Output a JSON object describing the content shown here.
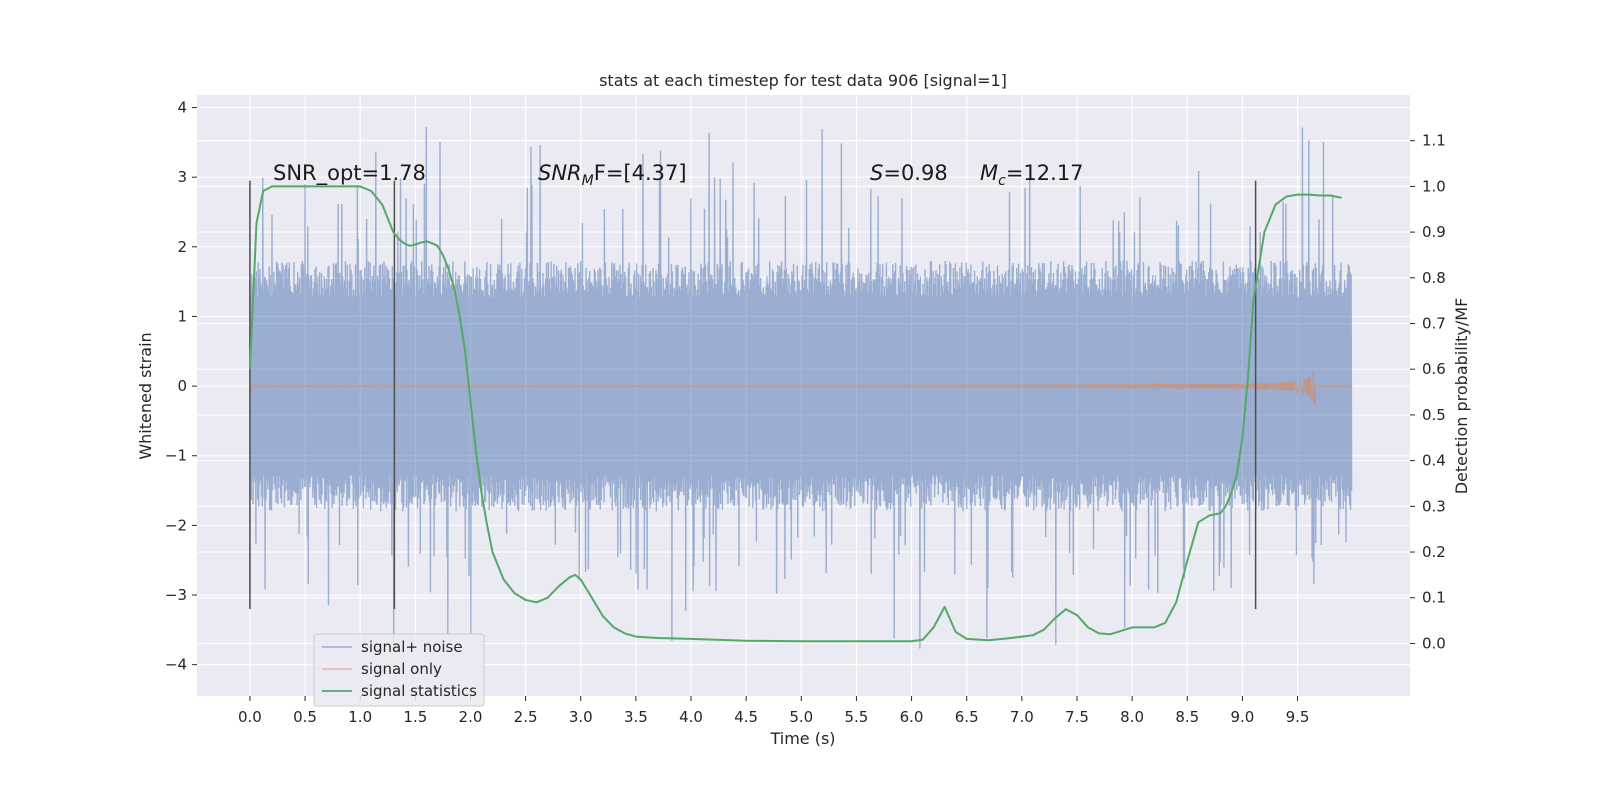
{
  "chart_data": {
    "type": "line",
    "title": "stats at each timestep for test data 906 [signal=1]",
    "xlabel": "Time (s)",
    "ylabel": "Whitened strain",
    "y2label": "Detection probability/MF",
    "xlim": [
      -0.48,
      10.52
    ],
    "ylim": [
      -4.45,
      4.18
    ],
    "y2lim": [
      -0.115,
      1.2
    ],
    "x_ticks": [
      "0.0",
      "0.5",
      "1.0",
      "1.5",
      "2.0",
      "2.5",
      "3.0",
      "3.5",
      "4.0",
      "4.5",
      "5.0",
      "5.5",
      "6.0",
      "6.5",
      "7.0",
      "7.5",
      "8.0",
      "8.5",
      "9.0",
      "9.5"
    ],
    "y_ticks": [
      "4",
      "3",
      "2",
      "1",
      "0",
      "−1",
      "−2",
      "−3",
      "−4"
    ],
    "y2_ticks": [
      "1.1",
      "1.0",
      "0.9",
      "0.8",
      "0.7",
      "0.6",
      "0.5",
      "0.4",
      "0.3",
      "0.2",
      "0.1",
      "0.0"
    ],
    "grid": true,
    "legend_position": "lower-left",
    "annotations": {
      "snr_opt": "SNR_opt=1.78",
      "snr_mf_prefix": "SNR",
      "snr_mf_sub": "M",
      "snr_mf_suffix": "F=[4.37]",
      "s_var": "S",
      "s_value": "=0.98",
      "mc_var": "M",
      "mc_sub": "c",
      "mc_value": "=12.17"
    },
    "vertical_markers_x": [
      0.0,
      1.31,
      9.12
    ],
    "colors": {
      "signal_noise": "#4c72b0",
      "signal_only": "#dd8452",
      "signal_statistics": "#55a868",
      "axes_bg": "#eaeaf2",
      "grid": "#ffffff",
      "marker": "#4d4d4d"
    },
    "series": [
      {
        "name": "signal+ noise",
        "axis": "left",
        "kind": "noise",
        "x_range": [
          0.0,
          9.99
        ],
        "envelope": {
          "typical_abs": 1.5,
          "max": 3.8,
          "min": -4.05
        }
      },
      {
        "name": "signal only",
        "axis": "left",
        "kind": "chirp",
        "x_range": [
          0.0,
          9.99
        ],
        "merger_time": 9.66,
        "peak_amplitude": 0.32
      },
      {
        "name": "signal statistics",
        "axis": "right",
        "x": [
          0.0,
          0.06,
          0.12,
          0.2,
          0.3,
          0.5,
          0.7,
          0.9,
          1.0,
          1.1,
          1.2,
          1.25,
          1.3,
          1.35,
          1.4,
          1.45,
          1.5,
          1.55,
          1.6,
          1.65,
          1.7,
          1.75,
          1.8,
          1.85,
          1.9,
          1.95,
          2.0,
          2.05,
          2.1,
          2.15,
          2.2,
          2.3,
          2.4,
          2.5,
          2.6,
          2.7,
          2.8,
          2.9,
          2.95,
          3.0,
          3.1,
          3.2,
          3.3,
          3.4,
          3.5,
          3.7,
          4.0,
          4.5,
          5.0,
          5.5,
          6.0,
          6.1,
          6.2,
          6.3,
          6.4,
          6.5,
          6.7,
          6.9,
          7.1,
          7.2,
          7.3,
          7.4,
          7.5,
          7.6,
          7.7,
          7.8,
          8.0,
          8.2,
          8.3,
          8.4,
          8.5,
          8.6,
          8.7,
          8.8,
          8.85,
          8.9,
          8.95,
          9.0,
          9.05,
          9.1,
          9.2,
          9.3,
          9.4,
          9.5,
          9.6,
          9.7,
          9.8,
          9.9
        ],
        "values": [
          0.6,
          0.92,
          0.99,
          1.0,
          1.0,
          1.0,
          1.0,
          1.0,
          1.0,
          0.99,
          0.96,
          0.93,
          0.9,
          0.885,
          0.875,
          0.87,
          0.873,
          0.877,
          0.88,
          0.876,
          0.87,
          0.85,
          0.82,
          0.78,
          0.72,
          0.64,
          0.53,
          0.42,
          0.33,
          0.26,
          0.2,
          0.14,
          0.11,
          0.095,
          0.09,
          0.1,
          0.125,
          0.145,
          0.15,
          0.14,
          0.1,
          0.06,
          0.035,
          0.022,
          0.015,
          0.012,
          0.01,
          0.006,
          0.005,
          0.005,
          0.005,
          0.008,
          0.035,
          0.08,
          0.025,
          0.01,
          0.007,
          0.012,
          0.018,
          0.03,
          0.055,
          0.075,
          0.062,
          0.035,
          0.022,
          0.02,
          0.035,
          0.035,
          0.045,
          0.09,
          0.18,
          0.265,
          0.28,
          0.285,
          0.3,
          0.33,
          0.37,
          0.45,
          0.58,
          0.75,
          0.9,
          0.96,
          0.978,
          0.982,
          0.982,
          0.98,
          0.98,
          0.975
        ]
      }
    ]
  }
}
